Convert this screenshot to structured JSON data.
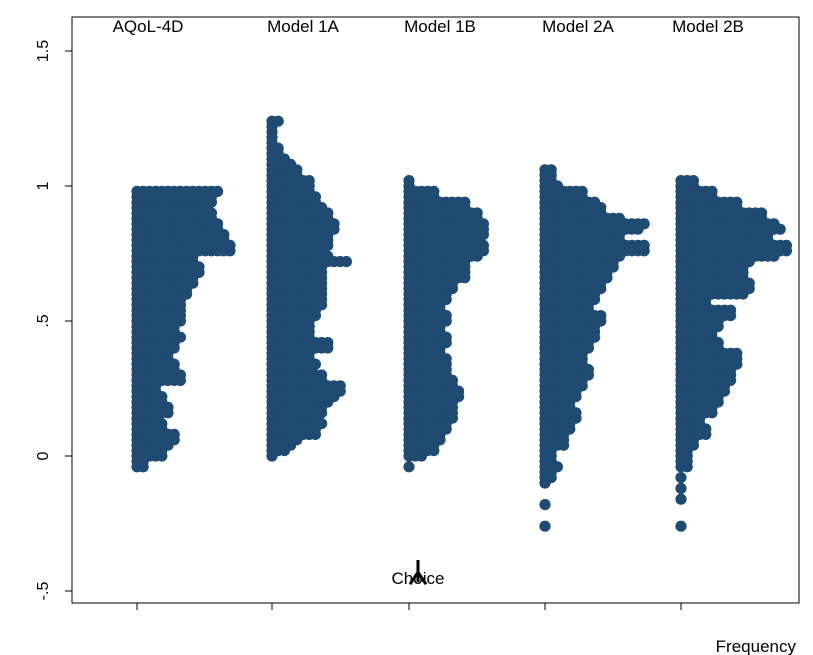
{
  "chart_data": {
    "type": "scatter",
    "subtype": "stacked dot plot",
    "ylim": [
      -0.6,
      1.55
    ],
    "yticks": [
      -0.5,
      0,
      0.5,
      1,
      1.5
    ],
    "ytick_labels": [
      "-.5",
      "0",
      ".5",
      "1",
      "1.5"
    ],
    "xlabel": "Frequency",
    "grid": false,
    "marker_color": "#1F4A72",
    "series": [
      {
        "name": "AQoL-4D",
        "bins": [
          [
            0.98,
            14
          ],
          [
            0.96,
            13
          ],
          [
            0.94,
            13
          ],
          [
            0.92,
            12
          ],
          [
            0.9,
            13
          ],
          [
            0.88,
            13
          ],
          [
            0.86,
            14
          ],
          [
            0.84,
            14
          ],
          [
            0.82,
            15
          ],
          [
            0.8,
            15
          ],
          [
            0.78,
            16
          ],
          [
            0.76,
            16
          ],
          [
            0.74,
            10
          ],
          [
            0.72,
            10
          ],
          [
            0.7,
            11
          ],
          [
            0.68,
            11
          ],
          [
            0.66,
            10
          ],
          [
            0.64,
            10
          ],
          [
            0.62,
            9
          ],
          [
            0.6,
            9
          ],
          [
            0.58,
            8
          ],
          [
            0.56,
            8
          ],
          [
            0.54,
            8
          ],
          [
            0.52,
            8
          ],
          [
            0.5,
            8
          ],
          [
            0.48,
            7
          ],
          [
            0.46,
            7
          ],
          [
            0.44,
            8
          ],
          [
            0.42,
            7
          ],
          [
            0.4,
            7
          ],
          [
            0.38,
            6
          ],
          [
            0.36,
            6
          ],
          [
            0.34,
            7
          ],
          [
            0.32,
            7
          ],
          [
            0.3,
            8
          ],
          [
            0.28,
            8
          ],
          [
            0.26,
            4
          ],
          [
            0.24,
            4
          ],
          [
            0.22,
            5
          ],
          [
            0.2,
            5
          ],
          [
            0.18,
            6
          ],
          [
            0.16,
            6
          ],
          [
            0.14,
            4
          ],
          [
            0.12,
            5
          ],
          [
            0.1,
            5
          ],
          [
            0.08,
            7
          ],
          [
            0.06,
            7
          ],
          [
            0.04,
            6
          ],
          [
            0.02,
            5
          ],
          [
            0.0,
            5
          ],
          [
            -0.02,
            2
          ],
          [
            -0.04,
            2
          ]
        ]
      },
      {
        "name": "Model 1A",
        "bins": [
          [
            0.0,
            1
          ],
          [
            0.02,
            3
          ],
          [
            0.04,
            4
          ],
          [
            0.06,
            5
          ],
          [
            0.08,
            8
          ],
          [
            0.1,
            8
          ],
          [
            0.12,
            9
          ],
          [
            0.14,
            8
          ],
          [
            0.16,
            9
          ],
          [
            0.18,
            9
          ],
          [
            0.2,
            10
          ],
          [
            0.22,
            11
          ],
          [
            0.24,
            12
          ],
          [
            0.26,
            12
          ],
          [
            0.28,
            9
          ],
          [
            0.3,
            9
          ],
          [
            0.32,
            7
          ],
          [
            0.34,
            8
          ],
          [
            0.36,
            7
          ],
          [
            0.38,
            7
          ],
          [
            0.4,
            10
          ],
          [
            0.42,
            10
          ],
          [
            0.44,
            7
          ],
          [
            0.46,
            7
          ],
          [
            0.48,
            7
          ],
          [
            0.5,
            7
          ],
          [
            0.52,
            8
          ],
          [
            0.54,
            8
          ],
          [
            0.56,
            9
          ],
          [
            0.58,
            9
          ],
          [
            0.6,
            9
          ],
          [
            0.62,
            9
          ],
          [
            0.64,
            9
          ],
          [
            0.66,
            9
          ],
          [
            0.68,
            9
          ],
          [
            0.7,
            9
          ],
          [
            0.72,
            13
          ],
          [
            0.74,
            10
          ],
          [
            0.76,
            9
          ],
          [
            0.78,
            10
          ],
          [
            0.8,
            10
          ],
          [
            0.82,
            10
          ],
          [
            0.84,
            11
          ],
          [
            0.86,
            11
          ],
          [
            0.88,
            10
          ],
          [
            0.9,
            10
          ],
          [
            0.92,
            9
          ],
          [
            0.94,
            8
          ],
          [
            0.96,
            8
          ],
          [
            0.98,
            7
          ],
          [
            1.0,
            7
          ],
          [
            1.02,
            7
          ],
          [
            1.04,
            5
          ],
          [
            1.06,
            5
          ],
          [
            1.08,
            4
          ],
          [
            1.1,
            3
          ],
          [
            1.12,
            2
          ],
          [
            1.14,
            2
          ],
          [
            1.16,
            1
          ],
          [
            1.18,
            1
          ],
          [
            1.2,
            1
          ],
          [
            1.22,
            1
          ],
          [
            1.24,
            2
          ]
        ]
      },
      {
        "name": "Model 1B",
        "bins": [
          [
            -0.04,
            1
          ],
          [
            0.0,
            3
          ],
          [
            0.02,
            5
          ],
          [
            0.04,
            5
          ],
          [
            0.06,
            6
          ],
          [
            0.08,
            6
          ],
          [
            0.1,
            7
          ],
          [
            0.12,
            7
          ],
          [
            0.14,
            8
          ],
          [
            0.16,
            8
          ],
          [
            0.18,
            8
          ],
          [
            0.2,
            8
          ],
          [
            0.22,
            9
          ],
          [
            0.24,
            9
          ],
          [
            0.26,
            8
          ],
          [
            0.28,
            8
          ],
          [
            0.3,
            7
          ],
          [
            0.32,
            7
          ],
          [
            0.34,
            7
          ],
          [
            0.36,
            7
          ],
          [
            0.38,
            6
          ],
          [
            0.4,
            6
          ],
          [
            0.42,
            7
          ],
          [
            0.44,
            7
          ],
          [
            0.46,
            6
          ],
          [
            0.48,
            6
          ],
          [
            0.5,
            7
          ],
          [
            0.52,
            7
          ],
          [
            0.54,
            6
          ],
          [
            0.56,
            6
          ],
          [
            0.58,
            7
          ],
          [
            0.6,
            7
          ],
          [
            0.62,
            8
          ],
          [
            0.64,
            8
          ],
          [
            0.66,
            10
          ],
          [
            0.68,
            10
          ],
          [
            0.7,
            10
          ],
          [
            0.72,
            10
          ],
          [
            0.74,
            12
          ],
          [
            0.76,
            13
          ],
          [
            0.78,
            13
          ],
          [
            0.8,
            12
          ],
          [
            0.82,
            13
          ],
          [
            0.84,
            13
          ],
          [
            0.86,
            13
          ],
          [
            0.88,
            12
          ],
          [
            0.9,
            12
          ],
          [
            0.92,
            10
          ],
          [
            0.94,
            10
          ],
          [
            0.96,
            5
          ],
          [
            0.98,
            5
          ],
          [
            1.0,
            1
          ],
          [
            1.02,
            1
          ]
        ]
      },
      {
        "name": "Model 2A",
        "bins": [
          [
            -0.26,
            1
          ],
          [
            -0.18,
            1
          ],
          [
            -0.1,
            1
          ],
          [
            -0.08,
            2
          ],
          [
            -0.06,
            2
          ],
          [
            -0.04,
            3
          ],
          [
            -0.02,
            2
          ],
          [
            0.0,
            2
          ],
          [
            0.02,
            2
          ],
          [
            0.04,
            4
          ],
          [
            0.06,
            4
          ],
          [
            0.08,
            4
          ],
          [
            0.1,
            5
          ],
          [
            0.12,
            5
          ],
          [
            0.14,
            6
          ],
          [
            0.16,
            6
          ],
          [
            0.18,
            5
          ],
          [
            0.2,
            5
          ],
          [
            0.22,
            6
          ],
          [
            0.24,
            6
          ],
          [
            0.26,
            7
          ],
          [
            0.28,
            7
          ],
          [
            0.3,
            8
          ],
          [
            0.32,
            8
          ],
          [
            0.34,
            7
          ],
          [
            0.36,
            7
          ],
          [
            0.38,
            7
          ],
          [
            0.4,
            8
          ],
          [
            0.42,
            8
          ],
          [
            0.44,
            9
          ],
          [
            0.46,
            9
          ],
          [
            0.48,
            9
          ],
          [
            0.5,
            10
          ],
          [
            0.52,
            10
          ],
          [
            0.54,
            8
          ],
          [
            0.56,
            8
          ],
          [
            0.58,
            9
          ],
          [
            0.6,
            9
          ],
          [
            0.62,
            10
          ],
          [
            0.64,
            10
          ],
          [
            0.66,
            11
          ],
          [
            0.68,
            11
          ],
          [
            0.7,
            12
          ],
          [
            0.72,
            12
          ],
          [
            0.74,
            13
          ],
          [
            0.76,
            17
          ],
          [
            0.78,
            17
          ],
          [
            0.8,
            13
          ],
          [
            0.82,
            13
          ],
          [
            0.84,
            16
          ],
          [
            0.86,
            17
          ],
          [
            0.88,
            13
          ],
          [
            0.9,
            10
          ],
          [
            0.92,
            10
          ],
          [
            0.94,
            9
          ],
          [
            0.96,
            7
          ],
          [
            0.98,
            7
          ],
          [
            1.0,
            3
          ],
          [
            1.02,
            2
          ],
          [
            1.04,
            2
          ],
          [
            1.06,
            2
          ]
        ]
      },
      {
        "name": "Model 2B",
        "bins": [
          [
            -0.26,
            1
          ],
          [
            -0.16,
            1
          ],
          [
            -0.12,
            1
          ],
          [
            -0.08,
            1
          ],
          [
            -0.04,
            2
          ],
          [
            -0.02,
            2
          ],
          [
            0.0,
            2
          ],
          [
            0.02,
            2
          ],
          [
            0.04,
            3
          ],
          [
            0.06,
            3
          ],
          [
            0.08,
            5
          ],
          [
            0.1,
            5
          ],
          [
            0.12,
            4
          ],
          [
            0.14,
            4
          ],
          [
            0.16,
            6
          ],
          [
            0.18,
            6
          ],
          [
            0.2,
            7
          ],
          [
            0.22,
            7
          ],
          [
            0.24,
            8
          ],
          [
            0.26,
            8
          ],
          [
            0.28,
            9
          ],
          [
            0.3,
            9
          ],
          [
            0.32,
            9
          ],
          [
            0.34,
            10
          ],
          [
            0.36,
            10
          ],
          [
            0.38,
            10
          ],
          [
            0.4,
            7
          ],
          [
            0.42,
            7
          ],
          [
            0.44,
            6
          ],
          [
            0.46,
            6
          ],
          [
            0.48,
            7
          ],
          [
            0.5,
            7
          ],
          [
            0.52,
            9
          ],
          [
            0.54,
            9
          ],
          [
            0.56,
            5
          ],
          [
            0.58,
            5
          ],
          [
            0.6,
            11
          ],
          [
            0.62,
            12
          ],
          [
            0.64,
            12
          ],
          [
            0.66,
            11
          ],
          [
            0.68,
            11
          ],
          [
            0.7,
            11
          ],
          [
            0.72,
            12
          ],
          [
            0.74,
            16
          ],
          [
            0.76,
            18
          ],
          [
            0.78,
            18
          ],
          [
            0.8,
            15
          ],
          [
            0.82,
            15
          ],
          [
            0.84,
            17
          ],
          [
            0.86,
            16
          ],
          [
            0.88,
            14
          ],
          [
            0.9,
            14
          ],
          [
            0.92,
            10
          ],
          [
            0.94,
            10
          ],
          [
            0.96,
            6
          ],
          [
            0.98,
            6
          ],
          [
            1.0,
            3
          ],
          [
            1.02,
            3
          ]
        ]
      }
    ],
    "annotations": [
      {
        "text": "Choice",
        "series": "Model 1B",
        "y": -0.46
      }
    ]
  }
}
